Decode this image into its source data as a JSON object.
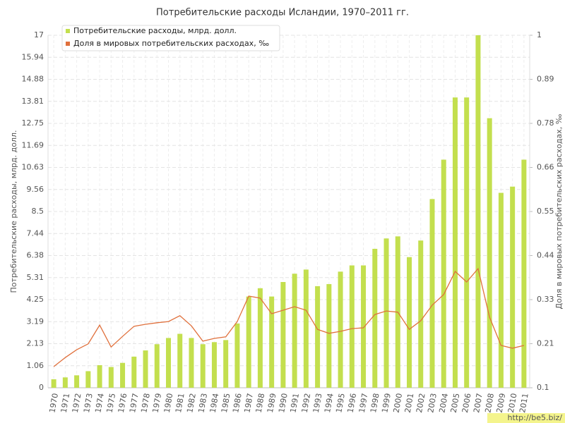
{
  "chart_data": {
    "type": "bar-line",
    "title": "Потребительские расходы Исландии, 1970–2011 гг.",
    "y_label": "Потребительские расходы, млрд. долл.",
    "y2_label": "Доля в мировых потребительских расходах, ‰",
    "watermark": "http://be5.biz/",
    "grid": true,
    "legend": "top-left",
    "categories": [
      "1970",
      "1971",
      "1972",
      "1973",
      "1974",
      "1975",
      "1976",
      "1977",
      "1978",
      "1979",
      "1980",
      "1981",
      "1982",
      "1983",
      "1984",
      "1985",
      "1986",
      "1987",
      "1988",
      "1989",
      "1990",
      "1991",
      "1992",
      "1993",
      "1994",
      "1995",
      "1996",
      "1997",
      "1998",
      "1999",
      "2000",
      "2001",
      "2002",
      "2003",
      "2004",
      "2005",
      "2006",
      "2007",
      "2008",
      "2009",
      "2010",
      "2011"
    ],
    "series": [
      {
        "name": "Потребительские расходы, млрд. долл.",
        "color": "#c3df4e",
        "kind": "bar",
        "values": [
          0.41,
          0.5,
          0.6,
          0.8,
          1.09,
          1.0,
          1.2,
          1.5,
          1.8,
          2.1,
          2.4,
          2.6,
          2.4,
          2.1,
          2.2,
          2.3,
          3.1,
          4.4,
          4.8,
          4.4,
          5.1,
          5.5,
          5.7,
          4.9,
          5.0,
          5.6,
          5.9,
          5.9,
          6.7,
          7.2,
          7.3,
          6.3,
          7.1,
          9.1,
          11.0,
          14.0,
          14.0,
          17.0,
          13.0,
          9.4,
          9.7,
          11.0
        ]
      },
      {
        "name": "Доля в мировых потребительских расходах, ‰",
        "color": "#e0703c",
        "kind": "line",
        "axis": "y2",
        "values": [
          0.154,
          0.177,
          0.197,
          0.212,
          0.26,
          0.204,
          0.231,
          0.257,
          0.262,
          0.266,
          0.269,
          0.284,
          0.258,
          0.219,
          0.226,
          0.23,
          0.269,
          0.334,
          0.329,
          0.289,
          0.298,
          0.307,
          0.298,
          0.249,
          0.239,
          0.244,
          0.251,
          0.253,
          0.287,
          0.296,
          0.293,
          0.249,
          0.271,
          0.311,
          0.338,
          0.397,
          0.37,
          0.404,
          0.28,
          0.208,
          0.201,
          0.208
        ]
      }
    ],
    "ylim": [
      0,
      17
    ],
    "yticks": [
      0,
      {
        "value": 1.0625,
        "label": "1.06"
      },
      {
        "value": 2.125,
        "label": "2.13"
      },
      {
        "value": 3.1875,
        "label": "3.19"
      },
      4.25,
      {
        "value": 5.3125,
        "label": "5.31"
      },
      {
        "value": 6.375,
        "label": "6.38"
      },
      {
        "value": 7.4375,
        "label": "7.44"
      },
      8.5,
      {
        "value": 9.5625,
        "label": "9.56"
      },
      {
        "value": 10.625,
        "label": "10.63"
      },
      {
        "value": 11.6875,
        "label": "11.69"
      },
      12.75,
      {
        "value": 13.8125,
        "label": "13.81"
      },
      {
        "value": 14.875,
        "label": "14.88"
      },
      {
        "value": 15.9375,
        "label": "15.94"
      },
      17
    ],
    "y2lim": [
      0.1,
      1
    ],
    "y2ticks": [
      0.1,
      {
        "value": 0.2125,
        "label": "0.21"
      },
      {
        "value": 0.325,
        "label": "0.33"
      },
      {
        "value": 0.4375,
        "label": "0.44"
      },
      0.55,
      {
        "value": 0.6625,
        "label": "0.66"
      },
      {
        "value": 0.775,
        "label": "0.78"
      },
      {
        "value": 0.8875,
        "label": "0.89"
      },
      1
    ]
  }
}
